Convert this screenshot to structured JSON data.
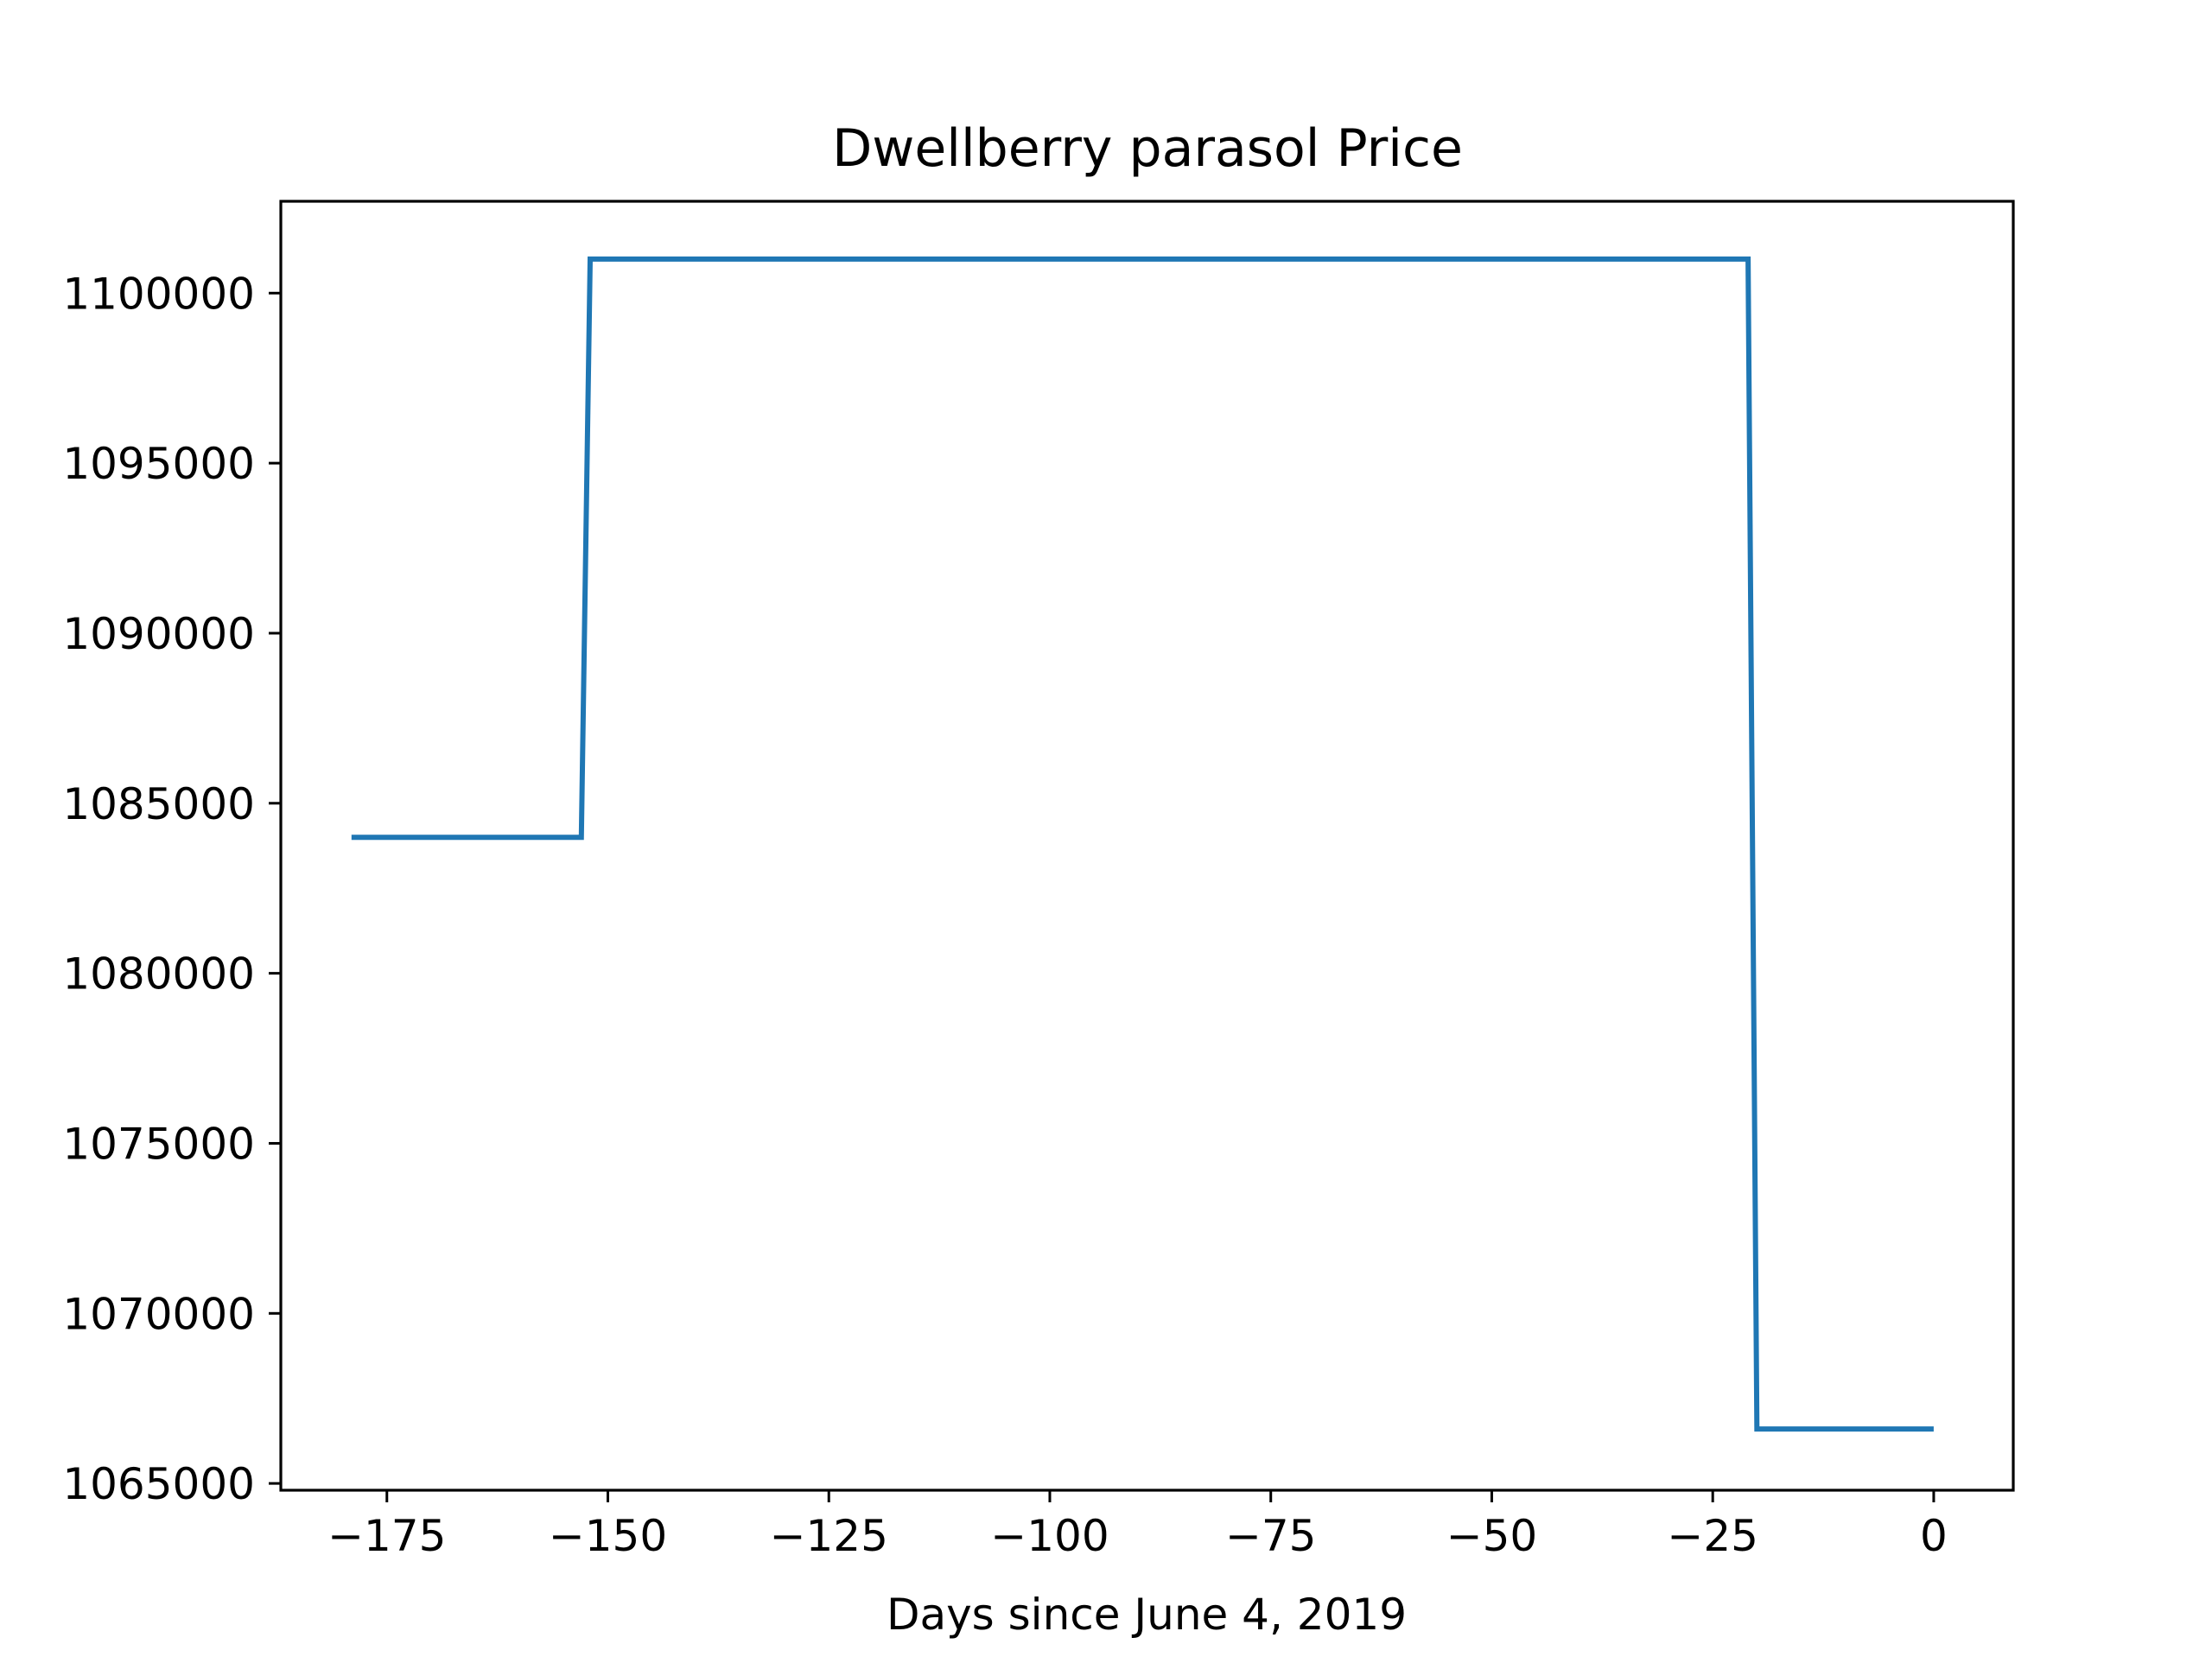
{
  "chart_data": {
    "type": "line",
    "title": "Dwellberry parasol Price",
    "xlabel": "Days since June 4, 2019",
    "ylabel": "",
    "xlim": [
      -187,
      9
    ],
    "ylim": [
      1064800,
      1102700
    ],
    "xticks": [
      -175,
      -150,
      -125,
      -100,
      -75,
      -50,
      -25,
      0
    ],
    "xtick_labels": [
      "−175",
      "−150",
      "−125",
      "−100",
      "−75",
      "−50",
      "−25",
      "0"
    ],
    "yticks": [
      1065000,
      1070000,
      1075000,
      1080000,
      1085000,
      1090000,
      1095000,
      1100000
    ],
    "ytick_labels": [
      "1065000",
      "1070000",
      "1075000",
      "1080000",
      "1085000",
      "1090000",
      "1095000",
      "1100000"
    ],
    "grid": false,
    "series": [
      {
        "color": "#1f77b4",
        "x": [
          -179,
          -153,
          -152,
          -21,
          -20,
          0
        ],
        "y": [
          1084000,
          1084000,
          1101000,
          1101000,
          1066600,
          1066600
        ]
      }
    ]
  }
}
